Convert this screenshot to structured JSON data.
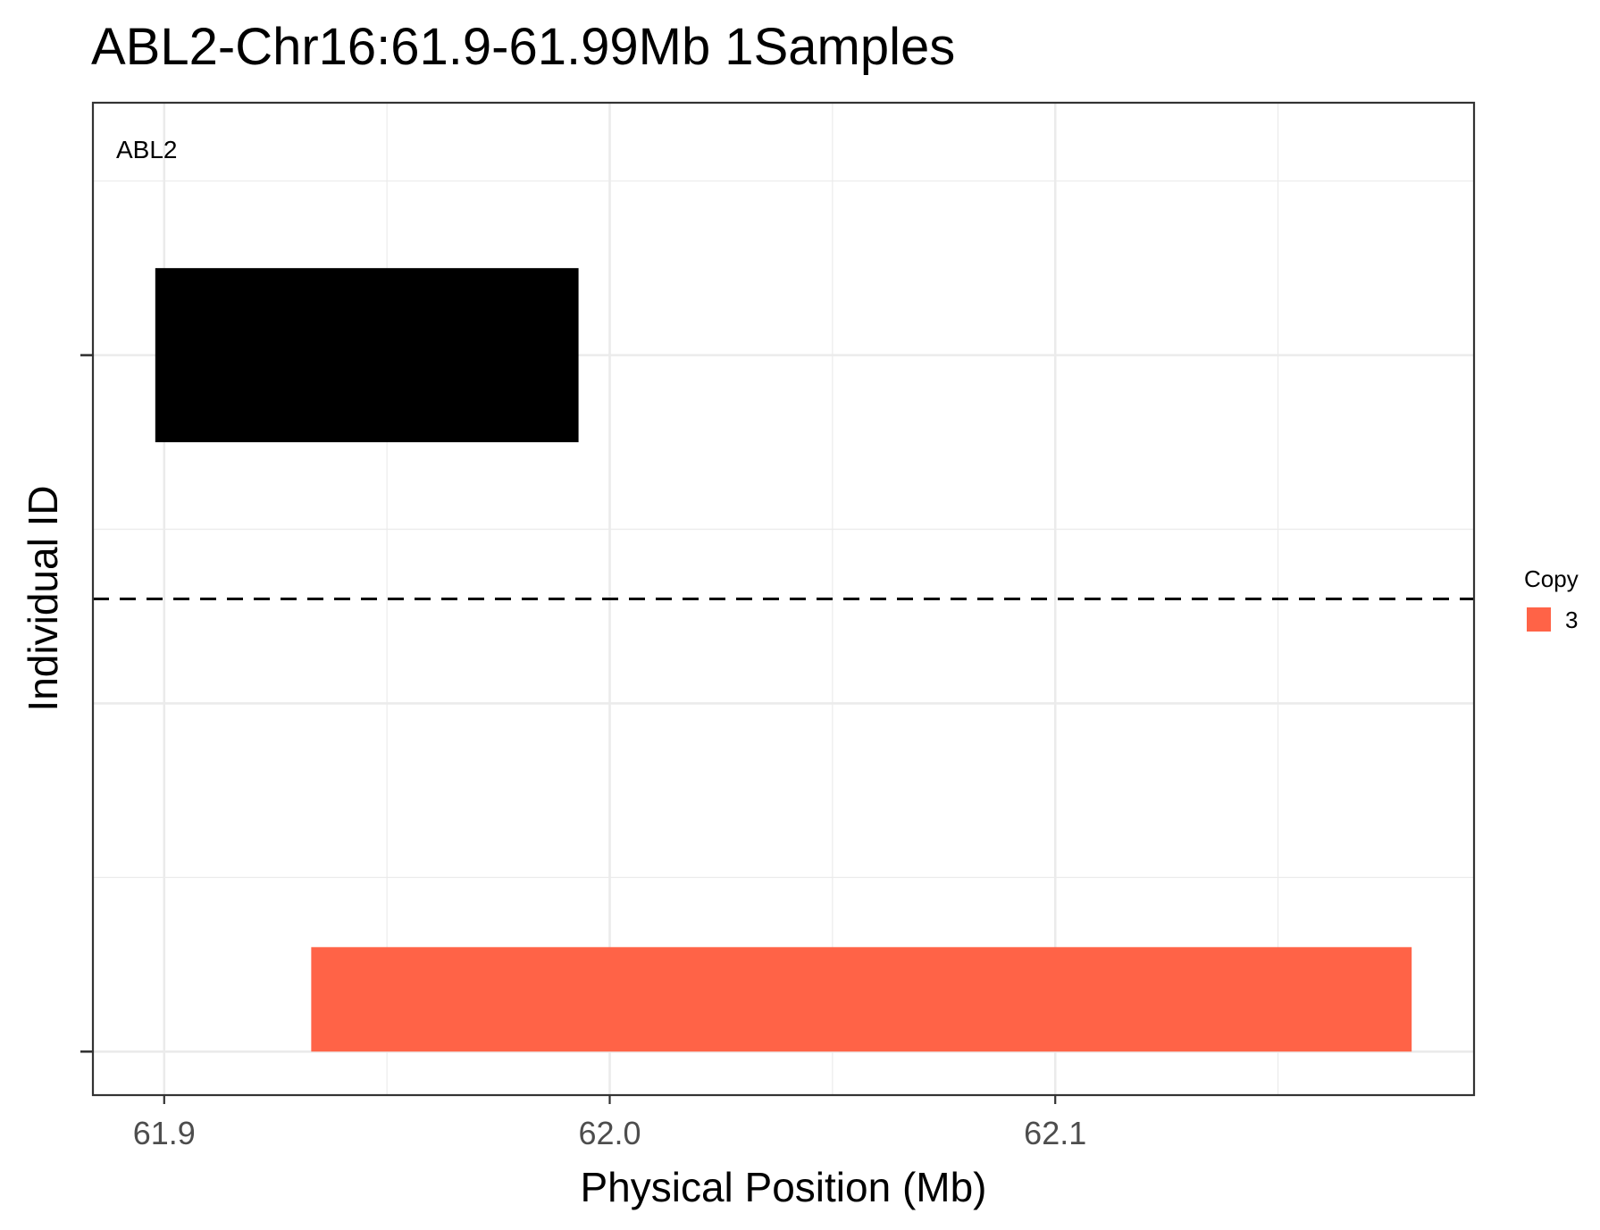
{
  "chart_data": {
    "type": "bar",
    "title": "ABL2-Chr16:61.9-61.99Mb 1Samples",
    "xlabel": "Physical Position (Mb)",
    "ylabel": "Individual ID",
    "xlim": [
      61.884,
      62.194
    ],
    "x_ticks": [
      "61.9",
      "62.0",
      "62.1"
    ],
    "x_tick_values": [
      61.9,
      62.0,
      62.1
    ],
    "ylim": [
      0.875,
      3.725
    ],
    "grid": true,
    "gene": {
      "name": "ABL2",
      "start": 61.898,
      "end": 61.993,
      "color": "#000000"
    },
    "separator_y": 2.3,
    "series": [
      {
        "name": "3",
        "color": "#FF6347",
        "segments": [
          {
            "individual": 1,
            "start": 61.933,
            "end": 62.18
          }
        ]
      }
    ],
    "legend": {
      "title": "Copy",
      "position": "right",
      "entries": [
        {
          "label": "3",
          "color": "#FF6347"
        }
      ]
    }
  }
}
